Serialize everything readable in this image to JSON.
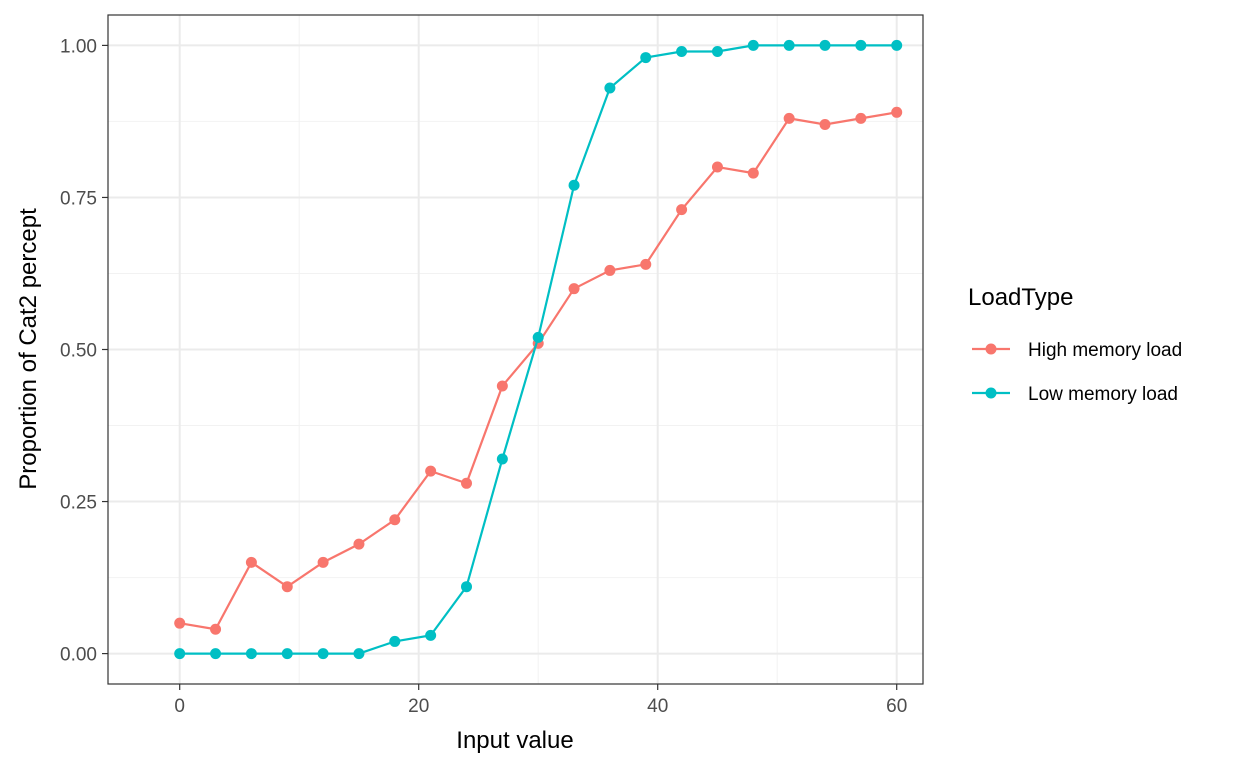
{
  "chart_data": {
    "type": "line",
    "title": "",
    "xlabel": "Input value",
    "ylabel": "Proportion of Cat2 percept",
    "xlim": [
      -6,
      62.2
    ],
    "ylim": [
      -0.05,
      1.05
    ],
    "xticks": [
      0,
      20,
      40,
      60
    ],
    "xtick_labels": [
      "0",
      "20",
      "40",
      "60"
    ],
    "yticks": [
      0,
      0.25,
      0.5,
      0.75,
      1
    ],
    "ytick_labels": [
      "0.00",
      "0.25",
      "0.50",
      "0.75",
      "1.00"
    ],
    "grid": true,
    "legend": {
      "title": "LoadType",
      "position": "right"
    },
    "x": [
      0,
      3,
      6,
      9,
      12,
      15,
      18,
      21,
      24,
      27,
      30,
      33,
      36,
      39,
      42,
      45,
      48,
      51,
      54,
      57,
      60
    ],
    "series": [
      {
        "name": "High memory load",
        "color": "#F8766D",
        "values": [
          0.05,
          0.04,
          0.15,
          0.11,
          0.15,
          0.18,
          0.22,
          0.3,
          0.28,
          0.44,
          0.51,
          0.6,
          0.63,
          0.64,
          0.73,
          0.8,
          0.79,
          0.88,
          0.87,
          0.88,
          0.89
        ]
      },
      {
        "name": "Low memory load",
        "color": "#00BFC4",
        "values": [
          0,
          0,
          0,
          0,
          0,
          0,
          0.02,
          0.03,
          0.11,
          0.32,
          0.52,
          0.77,
          0.93,
          0.98,
          0.99,
          0.99,
          1,
          1,
          1,
          1,
          1
        ]
      }
    ]
  }
}
